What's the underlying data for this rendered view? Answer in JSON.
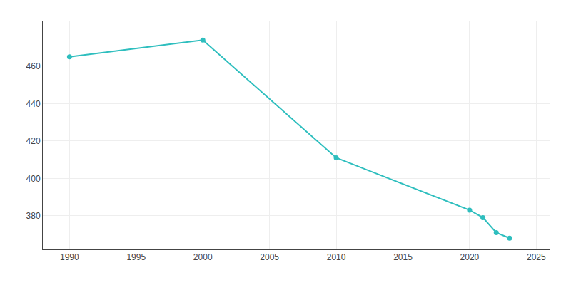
{
  "chart_data": {
    "type": "line",
    "x": [
      1990,
      2000,
      2010,
      2020,
      2021,
      2022,
      2023
    ],
    "values": [
      465,
      474,
      411,
      383,
      379,
      371,
      368
    ],
    "color": "#2EBEBE",
    "marker": "circle",
    "xlim": [
      1988,
      2026
    ],
    "ylim": [
      362,
      484
    ],
    "xticks": [
      1990,
      1995,
      2000,
      2005,
      2010,
      2015,
      2020,
      2025
    ],
    "yticks": [
      380,
      400,
      420,
      440,
      460
    ],
    "grid": true
  }
}
